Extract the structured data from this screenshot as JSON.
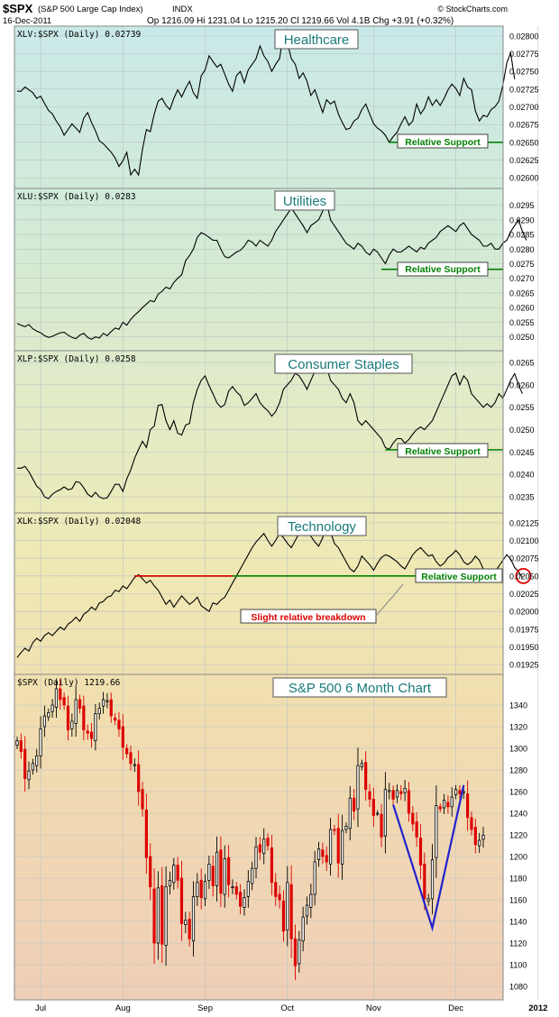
{
  "header": {
    "symbol": "$SPX",
    "name": "(S&P 500 Large Cap Index)",
    "exchange": "INDX",
    "date": "16-Dec-2011",
    "quote": "Op 1216.09  Hi 1231.04  Lo 1215.20  Cl 1219.66  Vol 4.1B  Chg +3.91 (+0.32%)",
    "watermark": "© StockCharts.com"
  },
  "colors": {
    "line": "#000000",
    "support": "#008000",
    "breakdown_line": "#dd0000",
    "circle": "#dd0000",
    "v_pattern": "#2222cc",
    "up_candle": "#000000",
    "down_candle": "#dd0000",
    "title_box_text": "#1a7a7a"
  },
  "chart_data": [
    {
      "type": "line",
      "id": "xlv",
      "legend": "XLV:$SPX (Daily) 0.02739",
      "title": "Healthcare",
      "ylim": [
        0.0259,
        0.0281
      ],
      "yticks": [
        "0.02800",
        "0.02775",
        "0.02750",
        "0.02725",
        "0.02700",
        "0.02675",
        "0.02650",
        "0.02625",
        "0.02600"
      ],
      "ytick_values": [
        0.028,
        0.02775,
        0.0275,
        0.02725,
        0.027,
        0.02675,
        0.0265,
        0.02625,
        0.026
      ],
      "grid": true,
      "annotation": {
        "label": "Relative Support",
        "value": 0.0265,
        "start_index": 95
      },
      "values": [
        0.02722,
        0.02722,
        0.02728,
        0.02724,
        0.0272,
        0.02712,
        0.02715,
        0.02705,
        0.02695,
        0.0269,
        0.0268,
        0.02672,
        0.0266,
        0.02668,
        0.02676,
        0.0267,
        0.02664,
        0.02684,
        0.02692,
        0.02678,
        0.02666,
        0.02652,
        0.02648,
        0.02642,
        0.02636,
        0.02628,
        0.02616,
        0.02624,
        0.02636,
        0.02604,
        0.02612,
        0.02604,
        0.0264,
        0.02668,
        0.02665,
        0.0269,
        0.02708,
        0.02712,
        0.02702,
        0.02696,
        0.02712,
        0.02724,
        0.02714,
        0.02726,
        0.02736,
        0.0272,
        0.02712,
        0.02744,
        0.02752,
        0.02772,
        0.02764,
        0.02756,
        0.0276,
        0.02746,
        0.02732,
        0.02722,
        0.02744,
        0.0275,
        0.02734,
        0.02752,
        0.0276,
        0.02768,
        0.02786,
        0.02772,
        0.02764,
        0.0275,
        0.0276,
        0.02768,
        0.02804,
        0.0279,
        0.02768,
        0.0276,
        0.0274,
        0.02748,
        0.02736,
        0.02716,
        0.02724,
        0.02708,
        0.02692,
        0.0271,
        0.02704,
        0.02708,
        0.0269,
        0.02678,
        0.02668,
        0.0267,
        0.0268,
        0.02684,
        0.02696,
        0.02704,
        0.0269,
        0.02676,
        0.0267,
        0.02666,
        0.0266,
        0.0265,
        0.02658,
        0.02664,
        0.02676,
        0.02686,
        0.02674,
        0.0268,
        0.02704,
        0.0269,
        0.02698,
        0.02714,
        0.02702,
        0.0271,
        0.02702,
        0.02712,
        0.02724,
        0.02732,
        0.02726,
        0.02716,
        0.0274,
        0.02728,
        0.02724,
        0.02694,
        0.0268,
        0.02688,
        0.02686,
        0.02696,
        0.027,
        0.02708,
        0.0273,
        0.02762,
        0.02776,
        0.02739
      ]
    },
    {
      "type": "line",
      "id": "xlu",
      "legend": "XLU:$SPX (Daily) 0.0283",
      "title": "Utilities",
      "ylim": [
        0.02465,
        0.02995
      ],
      "yticks": [
        "0.0295",
        "0.0290",
        "0.0285",
        "0.0280",
        "0.0275",
        "0.0270",
        "0.0265",
        "0.0260",
        "0.0255",
        "0.0250"
      ],
      "ytick_values": [
        0.0295,
        0.029,
        0.0285,
        0.028,
        0.0275,
        0.027,
        0.0265,
        0.026,
        0.0255,
        0.025
      ],
      "grid": true,
      "annotation": {
        "label": "Relative Support",
        "value": 0.02731,
        "start_index": 93
      },
      "values": [
        0.02546,
        0.0254,
        0.02535,
        0.02542,
        0.02528,
        0.0252,
        0.02514,
        0.02504,
        0.02498,
        0.02502,
        0.02508,
        0.02514,
        0.02516,
        0.02506,
        0.02498,
        0.02494,
        0.02506,
        0.02512,
        0.02498,
        0.02492,
        0.025,
        0.02496,
        0.02512,
        0.02504,
        0.02518,
        0.0253,
        0.02526,
        0.0255,
        0.0254,
        0.0256,
        0.02574,
        0.02586,
        0.026,
        0.02612,
        0.02624,
        0.0262,
        0.02646,
        0.02656,
        0.0267,
        0.02664,
        0.02686,
        0.027,
        0.02712,
        0.0276,
        0.02778,
        0.028,
        0.0284,
        0.02856,
        0.0285,
        0.0284,
        0.0283,
        0.0283,
        0.028,
        0.02774,
        0.0277,
        0.0278,
        0.0279,
        0.02796,
        0.0281,
        0.0283,
        0.02824,
        0.0281,
        0.0283,
        0.0282,
        0.0281,
        0.0283,
        0.0286,
        0.0288,
        0.029,
        0.0292,
        0.0294,
        0.0292,
        0.029,
        0.0288,
        0.02856,
        0.0288,
        0.0289,
        0.029,
        0.0293,
        0.0296,
        0.029,
        0.0288,
        0.0286,
        0.0284,
        0.0282,
        0.0281,
        0.028,
        0.0282,
        0.0281,
        0.0279,
        0.0278,
        0.028,
        0.0279,
        0.0277,
        0.0275,
        0.0278,
        0.028,
        0.0279,
        0.0279,
        0.028,
        0.0281,
        0.028,
        0.0279,
        0.02806,
        0.028,
        0.0282,
        0.0283,
        0.0284,
        0.0286,
        0.0287,
        0.0288,
        0.0287,
        0.0286,
        0.0288,
        0.0289,
        0.0287,
        0.0285,
        0.0284,
        0.0283,
        0.0281,
        0.0281,
        0.0282,
        0.028,
        0.028,
        0.0282,
        0.0283,
        0.0286,
        0.0288,
        0.029,
        0.0286,
        0.0283
      ]
    },
    {
      "type": "line",
      "id": "xlp",
      "legend": "XLP:$SPX (Daily) 0.0258",
      "title": "Consumer Staples",
      "ylim": [
        0.0232,
        0.0267
      ],
      "yticks": [
        "0.0265",
        "0.0260",
        "0.0255",
        "0.0250",
        "0.0245",
        "0.0240",
        "0.0235"
      ],
      "ytick_values": [
        0.0265,
        0.026,
        0.0255,
        0.025,
        0.0245,
        0.024,
        0.0235
      ],
      "grid": true,
      "annotation": {
        "label": "Relative Support",
        "value": 0.02455,
        "start_index": 94
      },
      "values": [
        0.02414,
        0.02414,
        0.02418,
        0.02406,
        0.0239,
        0.02374,
        0.02366,
        0.0235,
        0.02346,
        0.02356,
        0.02362,
        0.02366,
        0.02372,
        0.02366,
        0.02368,
        0.02384,
        0.02382,
        0.0237,
        0.02356,
        0.0235,
        0.0236,
        0.0235,
        0.02346,
        0.02348,
        0.02362,
        0.02378,
        0.02378,
        0.02362,
        0.0239,
        0.0241,
        0.02436,
        0.02456,
        0.02474,
        0.0246,
        0.025,
        0.02508,
        0.02554,
        0.02556,
        0.0252,
        0.025,
        0.0252,
        0.02492,
        0.02488,
        0.0251,
        0.02514,
        0.0256,
        0.0259,
        0.0261,
        0.0262,
        0.02598,
        0.0258,
        0.0256,
        0.0255,
        0.02556,
        0.02586,
        0.02596,
        0.02584,
        0.02576,
        0.02554,
        0.0256,
        0.0257,
        0.0258,
        0.0256,
        0.0255,
        0.02542,
        0.0253,
        0.0254,
        0.0256,
        0.0259,
        0.026,
        0.0261,
        0.02626,
        0.0262,
        0.02606,
        0.0259,
        0.0261,
        0.0263,
        0.0264,
        0.02661,
        0.0264,
        0.0261,
        0.026,
        0.0259,
        0.0257,
        0.0256,
        0.0258,
        0.0256,
        0.0252,
        0.0251,
        0.0252,
        0.0251,
        0.025,
        0.0249,
        0.0248,
        0.0246,
        0.02456,
        0.0247,
        0.0248,
        0.0248,
        0.0247,
        0.02478,
        0.0249,
        0.025,
        0.02506,
        0.025,
        0.0251,
        0.0252,
        0.0254,
        0.0256,
        0.0258,
        0.026,
        0.0262,
        0.02626,
        0.026,
        0.0262,
        0.0261,
        0.0258,
        0.0257,
        0.0256,
        0.0255,
        0.02558,
        0.0255,
        0.0256,
        0.0258,
        0.0257,
        0.0259,
        0.0261,
        0.02625,
        0.026,
        0.0258
      ]
    },
    {
      "type": "line",
      "id": "xlk",
      "legend": "XLK:$SPX (Daily) 0.02048",
      "title": "Technology",
      "ylim": [
        0.01915,
        0.02135
      ],
      "yticks": [
        "0.02125",
        "0.02100",
        "0.02075",
        "0.02050",
        "0.02025",
        "0.02000",
        "0.01975",
        "0.01950",
        "0.01925"
      ],
      "ytick_values": [
        0.02125,
        0.021,
        0.02075,
        0.0205,
        0.02025,
        0.02,
        0.01975,
        0.0195,
        0.01925
      ],
      "grid": true,
      "annotation": {
        "label": "Relative Support",
        "value": 0.0205,
        "start_index": 30
      },
      "breakdown_line": {
        "value": 0.0205,
        "start_index": 30,
        "end_index": 55
      },
      "callout": "Slight relative breakdown",
      "values": [
        0.01935,
        0.01942,
        0.01948,
        0.01944,
        0.01956,
        0.01962,
        0.01958,
        0.01966,
        0.0197,
        0.01966,
        0.01972,
        0.01978,
        0.01974,
        0.01982,
        0.01986,
        0.01992,
        0.01986,
        0.01996,
        0.02,
        0.02006,
        0.02002,
        0.02012,
        0.02014,
        0.0202,
        0.02022,
        0.0203,
        0.02028,
        0.02036,
        0.02032,
        0.0204,
        0.02048,
        0.02052,
        0.02046,
        0.0204,
        0.02044,
        0.02036,
        0.0203,
        0.0202,
        0.0201,
        0.02016,
        0.02006,
        0.02014,
        0.02022,
        0.02016,
        0.0201,
        0.02014,
        0.0202,
        0.02008,
        0.02004,
        0.02,
        0.02012,
        0.0201,
        0.02016,
        0.0202,
        0.0203,
        0.0204,
        0.0205,
        0.0206,
        0.0207,
        0.0208,
        0.0209,
        0.02098,
        0.02104,
        0.0211,
        0.021,
        0.02092,
        0.021,
        0.0211,
        0.02104,
        0.02096,
        0.0209,
        0.021,
        0.0211,
        0.02112,
        0.0212,
        0.02106,
        0.02098,
        0.02092,
        0.02104,
        0.02126,
        0.02112,
        0.02096,
        0.0209,
        0.0208,
        0.0207,
        0.0206,
        0.02056,
        0.02064,
        0.02078,
        0.02072,
        0.02066,
        0.02058,
        0.02068,
        0.02076,
        0.0208,
        0.02078,
        0.02074,
        0.0207,
        0.02064,
        0.0206,
        0.0207,
        0.0208,
        0.02086,
        0.0209,
        0.02084,
        0.02078,
        0.0208,
        0.0207,
        0.02064,
        0.02068,
        0.02076,
        0.0208,
        0.02086,
        0.0208,
        0.0207,
        0.02066,
        0.0207,
        0.02078,
        0.02072,
        0.0206,
        0.02054,
        0.0205,
        0.02056,
        0.02064,
        0.02072,
        0.0208,
        0.02074,
        0.02062,
        0.02056,
        0.02048
      ]
    },
    {
      "type": "candlestick",
      "id": "spx",
      "legend": "$SPX (Daily) 1219.66",
      "title": "S&P 500 6 Month Chart",
      "ylim": [
        1070,
        1365
      ],
      "yticks": [
        "1340",
        "1320",
        "1300",
        "1280",
        "1260",
        "1240",
        "1220",
        "1200",
        "1180",
        "1160",
        "1140",
        "1120",
        "1100",
        "1080"
      ],
      "ytick_values": [
        1340,
        1320,
        1300,
        1280,
        1260,
        1240,
        1220,
        1200,
        1180,
        1160,
        1140,
        1120,
        1100,
        1080
      ],
      "grid": true,
      "x_labels": [
        "Jul",
        "Aug",
        "Sep",
        "Oct",
        "Nov",
        "Dec",
        "2012"
      ],
      "x_label_index": [
        6,
        27,
        48,
        69,
        91,
        112,
        133
      ],
      "v_pattern": [
        {
          "index": 96,
          "value": 1248
        },
        {
          "index": 106,
          "value": 1134
        },
        {
          "index": 114,
          "value": 1266
        }
      ],
      "close": [
        1307,
        1297,
        1272,
        1279,
        1286,
        1293,
        1318,
        1330,
        1333,
        1340,
        1355,
        1345,
        1340,
        1317,
        1325,
        1345,
        1337,
        1317,
        1314,
        1309,
        1332,
        1337,
        1345,
        1344,
        1330,
        1326,
        1318,
        1301,
        1295,
        1286,
        1285,
        1260,
        1244,
        1199,
        1172,
        1120,
        1171,
        1119,
        1172,
        1178,
        1192,
        1178,
        1138,
        1141,
        1124,
        1163,
        1176,
        1162,
        1177,
        1193,
        1173,
        1204,
        1166,
        1198,
        1174,
        1172,
        1165,
        1154,
        1162,
        1177,
        1189,
        1209,
        1204,
        1216,
        1210,
        1176,
        1163,
        1160,
        1131,
        1176,
        1124,
        1099,
        1123,
        1144,
        1155,
        1165,
        1195,
        1207,
        1200,
        1195,
        1225,
        1224,
        1194,
        1224,
        1228,
        1254,
        1242,
        1284,
        1286,
        1262,
        1253,
        1238,
        1240,
        1218,
        1262,
        1261,
        1253,
        1261,
        1258,
        1263,
        1240,
        1230,
        1218,
        1192,
        1161,
        1161,
        1197,
        1247,
        1244,
        1252,
        1246,
        1255,
        1262,
        1258,
        1260,
        1236,
        1225,
        1211,
        1215,
        1219.66
      ]
    }
  ]
}
